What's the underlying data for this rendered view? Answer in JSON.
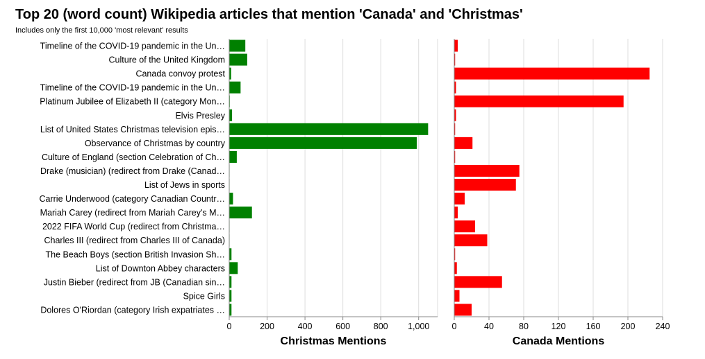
{
  "title": "Top 20 (word count) Wikipedia articles that mention 'Canada' and 'Christmas'",
  "subtitle": "Includes only the first 10,000 'most relevant' results",
  "chart_data": {
    "type": "bar",
    "orientation": "horizontal",
    "categories": [
      "Timeline of the COVID-19 pandemic in the Un…",
      "Culture of the United Kingdom",
      "Canada convoy protest",
      "Timeline of the COVID-19 pandemic in the Un…",
      "Platinum Jubilee of Elizabeth II (category Mon…",
      "Elvis Presley",
      "List of United States Christmas television epis…",
      "Observance of Christmas by country",
      "Culture of England (section Celebration of Ch…",
      "Drake (musician) (redirect from Drake (Canad…",
      "List of Jews in sports",
      "Carrie Underwood (category Canadian Countr…",
      "Mariah Carey (redirect from Mariah Carey's M…",
      "2022 FIFA World Cup (redirect from Christma…",
      "Charles III (redirect from Charles III of Canada)",
      "The Beach Boys (section British Invasion  Sh…",
      "List of Downton Abbey characters",
      "Justin Bieber (redirect from JB (Canadian sin…",
      "Spice Girls",
      "Dolores O'Riordan (category Irish expatriates …"
    ],
    "series": [
      {
        "name": "Christmas Mentions",
        "color": "#008000",
        "xlim": [
          0,
          1100
        ],
        "ticks": [
          0,
          200,
          400,
          600,
          800,
          1000
        ],
        "tick_labels": [
          "0",
          "200",
          "400",
          "600",
          "800",
          "1,000"
        ],
        "values": [
          85,
          95,
          10,
          60,
          3,
          15,
          1050,
          990,
          40,
          2,
          2,
          20,
          120,
          2,
          2,
          12,
          45,
          12,
          12,
          12
        ]
      },
      {
        "name": "Canada Mentions",
        "color": "#ff0000",
        "xlim": [
          0,
          240
        ],
        "ticks": [
          0,
          40,
          80,
          120,
          160,
          200,
          240
        ],
        "tick_labels": [
          "0",
          "40",
          "80",
          "120",
          "160",
          "200",
          "240"
        ],
        "values": [
          4,
          1,
          225,
          2,
          195,
          2,
          1,
          21,
          1,
          75,
          71,
          12,
          4,
          24,
          38,
          1,
          3,
          55,
          6,
          20
        ]
      }
    ],
    "grid": true
  }
}
